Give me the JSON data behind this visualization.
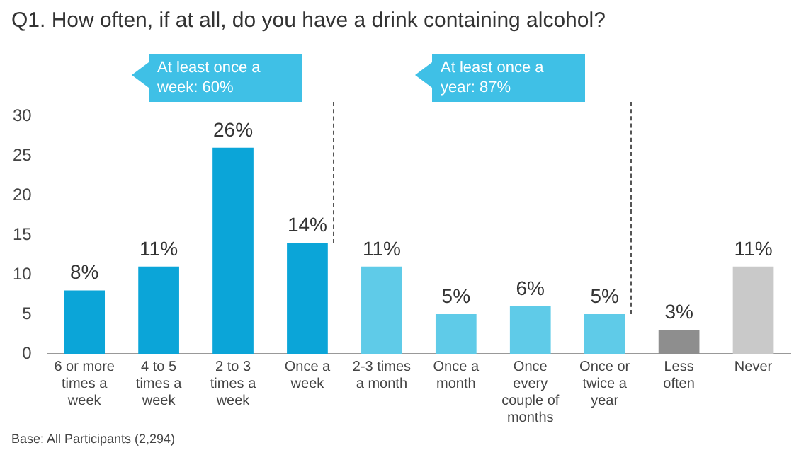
{
  "chart_data": {
    "type": "bar",
    "title": "Q1. How often, if at all, do you have a drink containing alcohol?",
    "categories": [
      "6 or more times a week",
      "4 to 5 times a week",
      "2 to 3 times a week",
      "Once a week",
      "2-3 times a month",
      "Once a month",
      "Once every couple of months",
      "Once or twice a year",
      "Less often",
      "Never"
    ],
    "values": [
      8,
      11,
      26,
      14,
      11,
      5,
      6,
      5,
      3,
      11
    ],
    "colors": [
      "#0ba5d8",
      "#0ba5d8",
      "#0ba5d8",
      "#0ba5d8",
      "#5fcbe8",
      "#5fcbe8",
      "#5fcbe8",
      "#5fcbe8",
      "#8e8e8e",
      "#c9c9c9"
    ],
    "value_labels": [
      "8%",
      "11%",
      "26%",
      "14%",
      "11%",
      "5%",
      "6%",
      "5%",
      "3%",
      "11%"
    ],
    "ylim": [
      0,
      30
    ],
    "yticks": [
      0,
      5,
      10,
      15,
      20,
      25,
      30
    ],
    "grid": false,
    "annotations": [
      "At least once a week: 60%",
      "At least once a year: 87%",
      "Base: All Participants (2,294)"
    ]
  }
}
